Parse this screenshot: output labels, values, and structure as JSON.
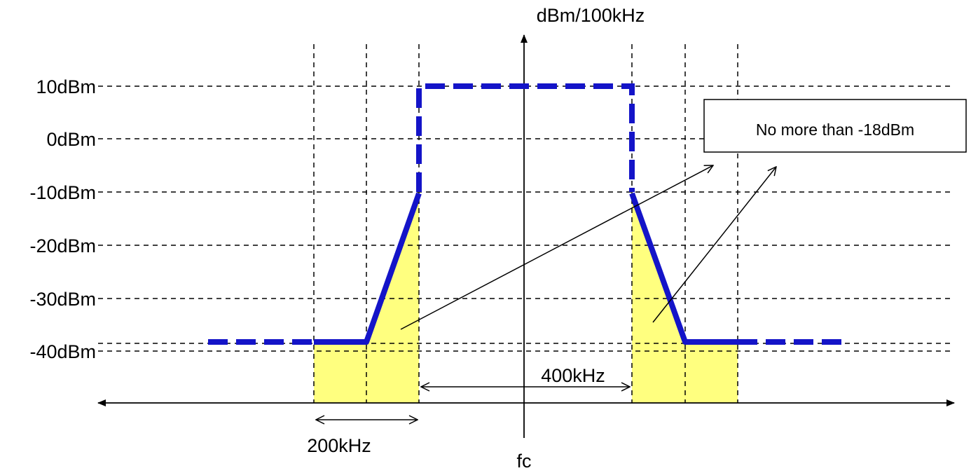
{
  "y_axis_label": "dBm/100kHz",
  "x_axis_label": "fc",
  "level_labels": [
    "10dBm",
    "0dBm",
    "-10dBm",
    "-20dBm",
    "-30dBm",
    "-40dBm"
  ],
  "spacing_labels": {
    "inner": "200kHz",
    "outer": "400kHz"
  },
  "note_box": {
    "text": "No more than -18dBm"
  },
  "colors": {
    "mask_line": "#1414c8",
    "shaded_region": "#ffff7f",
    "grid": "#000000"
  }
}
